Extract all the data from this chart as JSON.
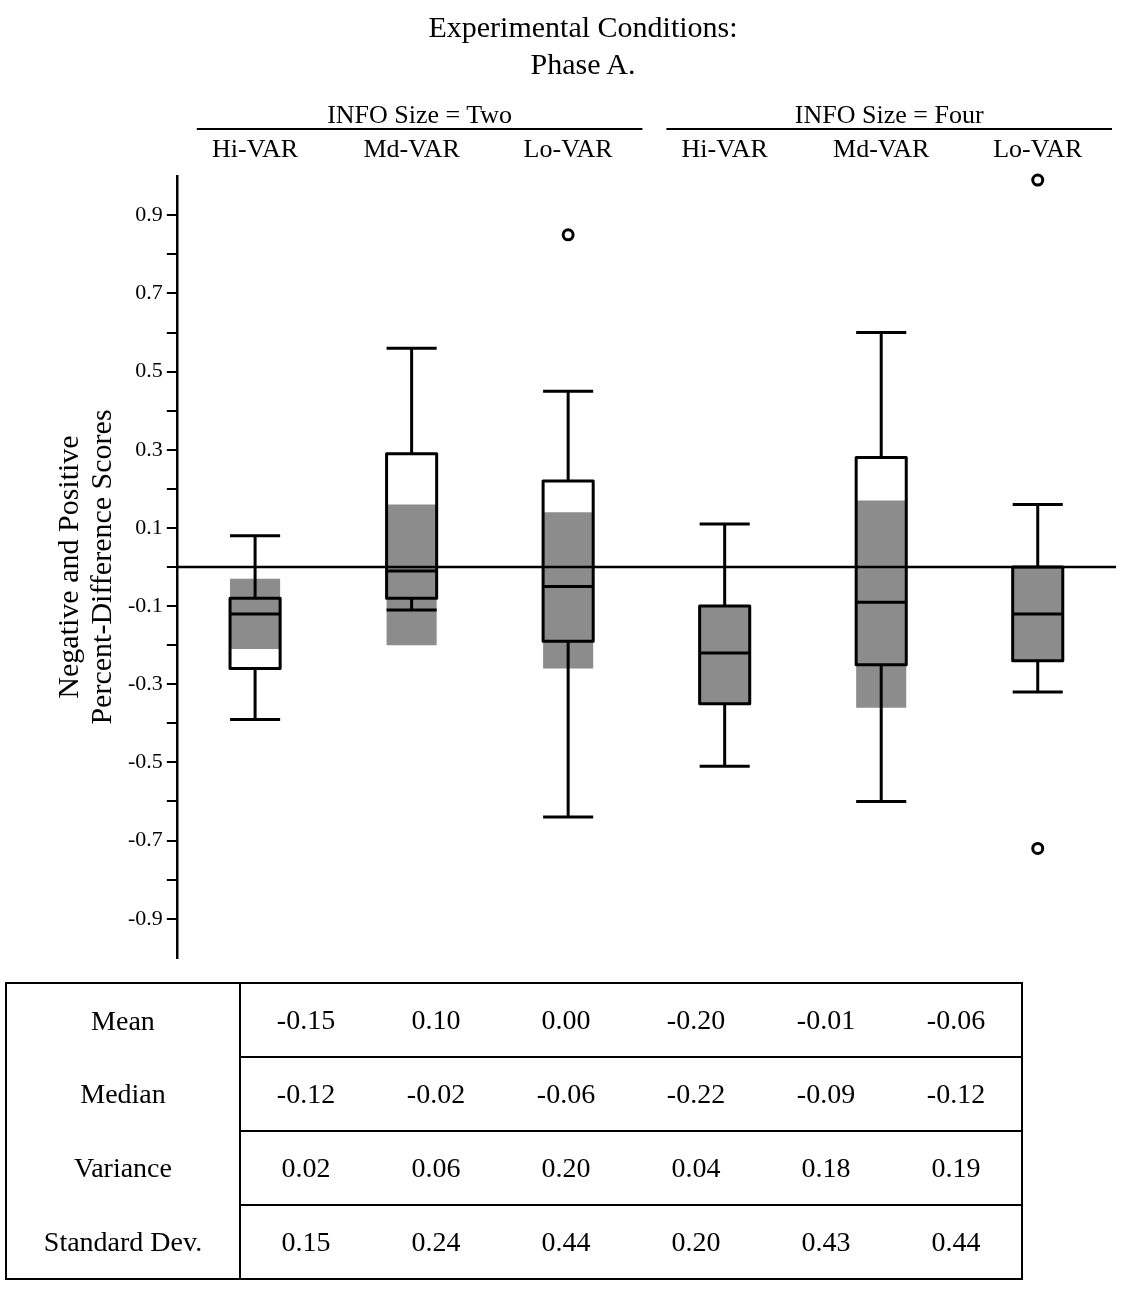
{
  "chart_data": [
    {
      "type": "box",
      "title": "Experimental Conditions:\nPhase A.",
      "ylabel": "Negative and Positive\nPercent-Difference Scores",
      "categories": [
        "Hi-VAR",
        "Md-VAR",
        "Lo-VAR",
        "Hi-VAR",
        "Md-VAR",
        "Lo-VAR"
      ],
      "annotations": [
        "INFO Size = Two",
        "INFO Size = Four"
      ],
      "ylim": [
        -1.0,
        1.0
      ],
      "yticks": [
        -0.9,
        {
          "value": -0.8,
          "label": null
        },
        -0.7,
        {
          "value": -0.6,
          "label": null
        },
        -0.5,
        {
          "value": -0.4,
          "label": null
        },
        -0.3,
        {
          "value": -0.2,
          "label": null
        },
        -0.1,
        {
          "value": 0,
          "label": null
        },
        0.1,
        {
          "value": 0.2,
          "label": null
        },
        0.3,
        {
          "value": 0.4,
          "label": null
        },
        0.5,
        {
          "value": 0.6,
          "label": null
        },
        0.7,
        {
          "value": 0.8,
          "label": null
        },
        0.9
      ],
      "ref_lines": [
        {
          "axis": "y",
          "value": 0,
          "color": "#000000"
        }
      ],
      "series": [
        {
          "type": "box",
          "colors": [
            "#ffffff",
            "#ffffff",
            "#ffffff",
            "#8c8c8c",
            "#ffffff",
            "#8c8c8c"
          ],
          "boxes": [
            {
              "low": -0.39,
              "q1": -0.26,
              "median": -0.12,
              "q3": -0.08,
              "high": 0.08
            },
            {
              "low": -0.11,
              "q1": -0.08,
              "median": -0.01,
              "q3": 0.29,
              "high": 0.56
            },
            {
              "low": -0.64,
              "q1": -0.19,
              "median": -0.05,
              "q3": 0.22,
              "high": 0.45,
              "outliers": [
                0.85
              ]
            },
            {
              "low": -0.51,
              "q1": -0.35,
              "median": -0.22,
              "q3": -0.1,
              "high": 0.11
            },
            {
              "low": -0.6,
              "q1": -0.25,
              "median": -0.09,
              "q3": 0.28,
              "high": 0.6
            },
            {
              "low": -0.32,
              "q1": -0.24,
              "median": -0.12,
              "q3": 0.0,
              "high": 0.16,
              "outliers": [
                0.99,
                -0.72
              ]
            }
          ]
        },
        {
          "type": "bar",
          "color": "#8c8c8c",
          "base": [
            -0.21,
            -0.2,
            -0.26,
            null,
            -0.36,
            null
          ],
          "values": [
            0.18,
            0.36,
            0.4,
            null,
            0.53,
            null
          ]
        }
      ]
    },
    {
      "type": "other",
      "categories": [
        null,
        null,
        null,
        null,
        null,
        null
      ],
      "y_categories": [
        "Mean",
        "Median",
        "Variance",
        "Standard Dev."
      ],
      "cell_labels": [
        [
          "-0.15",
          "0.10",
          "0.00",
          "-0.20",
          "-0.01",
          "-0.06"
        ],
        [
          "-0.12",
          "-0.02",
          "-0.06",
          "-0.22",
          "-0.09",
          "-0.12"
        ],
        [
          "0.02",
          "0.06",
          "0.20",
          "0.04",
          "0.18",
          "0.19"
        ],
        [
          "0.15",
          "0.24",
          "0.44",
          "0.20",
          "0.43",
          "0.44"
        ]
      ]
    }
  ]
}
